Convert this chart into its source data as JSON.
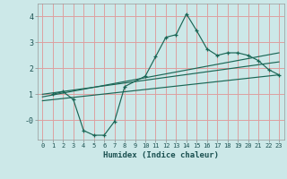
{
  "xlabel": "Humidex (Indice chaleur)",
  "bg_color": "#cce8e8",
  "grid_color": "#dda0a0",
  "line_color": "#1a6655",
  "xlim": [
    -0.5,
    23.5
  ],
  "ylim": [
    -0.75,
    4.5
  ],
  "xticks": [
    0,
    1,
    2,
    3,
    4,
    5,
    6,
    7,
    8,
    9,
    10,
    11,
    12,
    13,
    14,
    15,
    16,
    17,
    18,
    19,
    20,
    21,
    22,
    23
  ],
  "yticks": [
    0,
    1,
    2,
    3,
    4
  ],
  "ytick_labels": [
    "-0",
    "1",
    "2",
    "3",
    "4"
  ],
  "main_x": [
    1,
    2,
    3,
    4,
    5,
    6,
    7,
    8,
    10,
    11,
    12,
    13,
    14,
    15,
    16,
    17,
    18,
    19,
    20,
    21,
    22,
    23
  ],
  "main_y": [
    1.0,
    1.1,
    0.8,
    -0.4,
    -0.58,
    -0.58,
    -0.05,
    1.3,
    1.7,
    2.45,
    3.2,
    3.3,
    4.1,
    3.45,
    2.75,
    2.5,
    2.6,
    2.6,
    2.5,
    2.3,
    1.95,
    1.75
  ],
  "trend1_x": [
    0,
    23
  ],
  "trend1_y": [
    0.9,
    2.6
  ],
  "trend2_x": [
    0,
    23
  ],
  "trend2_y": [
    0.75,
    1.75
  ],
  "trend3_x": [
    0,
    23
  ],
  "trend3_y": [
    1.0,
    2.25
  ]
}
